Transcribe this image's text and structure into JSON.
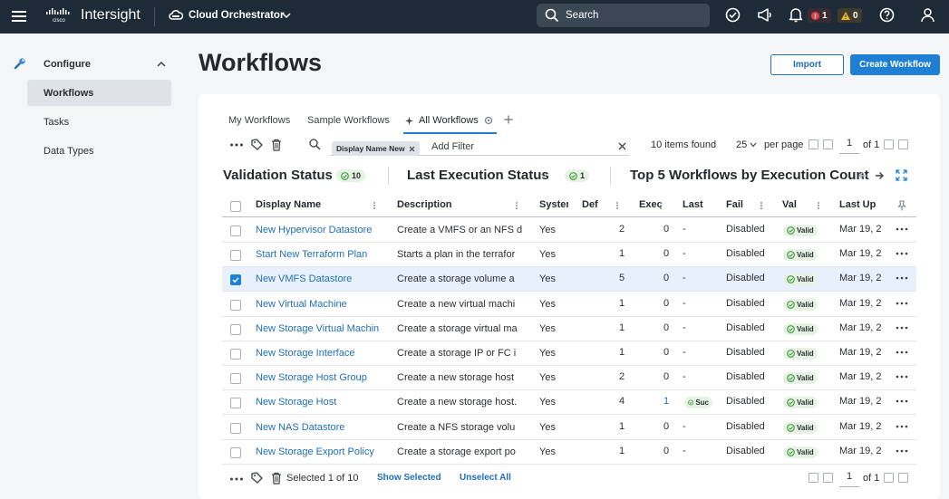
{
  "app": {
    "brand": "cisco",
    "name": "Intersight",
    "context": "Cloud Orchestrator",
    "search_placeholder": "Search",
    "alerts_critical": "1",
    "alerts_warning": "0"
  },
  "nav": {
    "section": "Configure",
    "items": [
      {
        "label": "Workflows",
        "active": true
      },
      {
        "label": "Tasks",
        "active": false
      },
      {
        "label": "Data Types",
        "active": false
      }
    ]
  },
  "page": {
    "title": "Workflows",
    "import_label": "Import",
    "create_label": "Create Workflow"
  },
  "tabs": [
    "My Workflows",
    "Sample Workflows",
    "All Workflows"
  ],
  "filter": {
    "chip": "Display Name New",
    "add_placeholder": "Add Filter",
    "items_found": "10 items found",
    "per_page_value": "25",
    "per_page_label": "per page",
    "page": "1",
    "of": "of 1"
  },
  "summary": {
    "validation_title": "Validation Status",
    "validation_count": "10",
    "execution_title": "Last Execution Status",
    "execution_count": "1",
    "top5_title": "Top 5 Workflows by Execution Count"
  },
  "columns": [
    "Display Name",
    "Description",
    "System",
    "Def",
    "Exec",
    "Last",
    "Fail",
    "Val",
    "Last Up"
  ],
  "rows": [
    {
      "name": "New Hypervisor Datastore",
      "desc": "Create a VMFS or an NFS d",
      "system": "Yes",
      "def": "2",
      "exec": "0",
      "last": "-",
      "fail": "Disabled",
      "valid": "Valid",
      "updated": "Mar 19, 2",
      "selected": false
    },
    {
      "name": "Start New Terraform Plan",
      "desc": "Starts a plan in the terrafor",
      "system": "Yes",
      "def": "1",
      "exec": "0",
      "last": "-",
      "fail": "Disabled",
      "valid": "Valid",
      "updated": "Mar 19, 2",
      "selected": false
    },
    {
      "name": "New VMFS Datastore",
      "desc": "Create a storage volume a",
      "system": "Yes",
      "def": "5",
      "exec": "0",
      "last": "-",
      "fail": "Disabled",
      "valid": "Valid",
      "updated": "Mar 19, 2",
      "selected": true
    },
    {
      "name": "New Virtual Machine",
      "desc": "Create a new virtual machi",
      "system": "Yes",
      "def": "1",
      "exec": "0",
      "last": "-",
      "fail": "Disabled",
      "valid": "Valid",
      "updated": "Mar 19, 2",
      "selected": false
    },
    {
      "name": "New Storage Virtual Machin",
      "desc": "Create a storage virtual ma",
      "system": "Yes",
      "def": "1",
      "exec": "0",
      "last": "-",
      "fail": "Disabled",
      "valid": "Valid",
      "updated": "Mar 19, 2",
      "selected": false
    },
    {
      "name": "New Storage Interface",
      "desc": "Create a storage IP or FC i",
      "system": "Yes",
      "def": "1",
      "exec": "0",
      "last": "-",
      "fail": "Disabled",
      "valid": "Valid",
      "updated": "Mar 19, 2",
      "selected": false
    },
    {
      "name": "New Storage Host Group",
      "desc": "Create a new storage host",
      "system": "Yes",
      "def": "2",
      "exec": "0",
      "last": "-",
      "fail": "Disabled",
      "valid": "Valid",
      "updated": "Mar 19, 2",
      "selected": false
    },
    {
      "name": "New Storage Host",
      "desc": "Create a new storage host.",
      "system": "Yes",
      "def": "4",
      "exec": "1",
      "last": "Suc",
      "fail": "Disabled",
      "valid": "Valid",
      "updated": "Mar 19, 2",
      "selected": false
    },
    {
      "name": "New NAS Datastore",
      "desc": "Create a NFS storage volu",
      "system": "Yes",
      "def": "1",
      "exec": "0",
      "last": "-",
      "fail": "Disabled",
      "valid": "Valid",
      "updated": "Mar 19, 2",
      "selected": false
    },
    {
      "name": "New Storage Export Policy",
      "desc": "Create a storage export po",
      "system": "Yes",
      "def": "1",
      "exec": "0",
      "last": "-",
      "fail": "Disabled",
      "valid": "Valid",
      "updated": "Mar 19, 2",
      "selected": false
    }
  ],
  "footer": {
    "selected": "Selected 1 of 10",
    "show_selected": "Show Selected",
    "unselect_all": "Unselect All",
    "page": "1",
    "of": "of 1"
  },
  "colors": {
    "accent": "#1f7fd2",
    "topbar": "#1d2a38",
    "valid_green": "#3f9b3a"
  }
}
